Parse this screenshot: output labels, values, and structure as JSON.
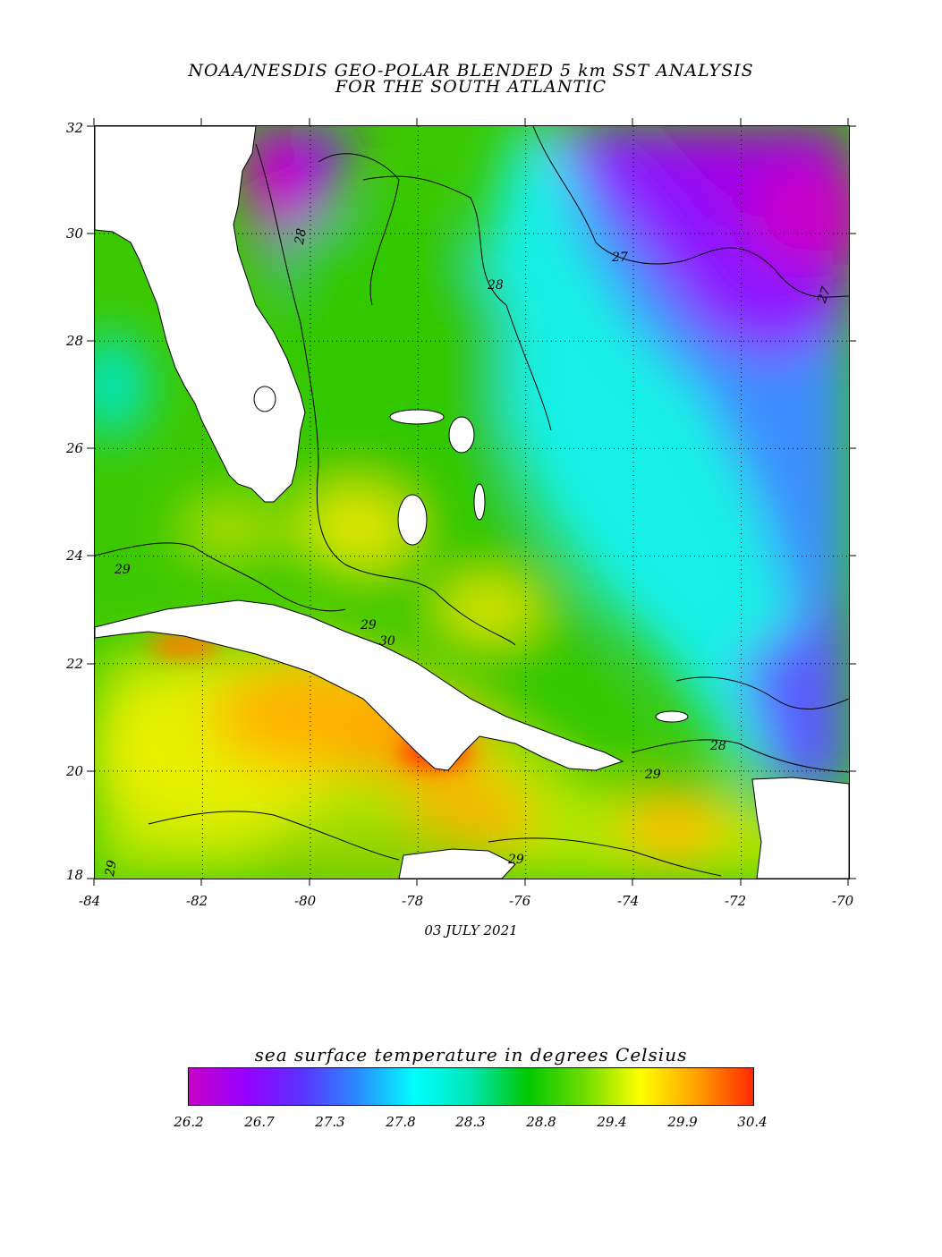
{
  "header": {
    "title_line1": "NOAA/NESDIS GEO-POLAR BLENDED 5 km SST ANALYSIS",
    "title_line2": "FOR THE SOUTH ATLANTIC"
  },
  "map": {
    "date": "03 JULY 2021",
    "lon_labels": [
      "-84",
      "-82",
      "-80",
      "-78",
      "-76",
      "-74",
      "-72",
      "-70"
    ],
    "lat_labels": [
      "32",
      "30",
      "28",
      "26",
      "24",
      "22",
      "20",
      "18"
    ],
    "contour_labels": [
      "28",
      "27",
      "28",
      "27",
      "29",
      "29",
      "30",
      "28",
      "29",
      "29",
      "29"
    ],
    "land_color": "#ffffff",
    "ocean_palette": [
      "#c800c8",
      "#7d00ff",
      "#2a8cff",
      "#00ffff",
      "#00d28c",
      "#32c800",
      "#96dc00",
      "#ffff00",
      "#ffa000",
      "#ff2800"
    ]
  },
  "colorbar": {
    "title": "sea surface temperature in degrees Celsius",
    "labels": [
      "26.2",
      "26.7",
      "27.3",
      "27.8",
      "28.3",
      "28.8",
      "29.4",
      "29.9",
      "30.4"
    ],
    "stops": [
      "#c800c8",
      "#9600ff",
      "#5a32ff",
      "#2a8cff",
      "#00ffff",
      "#00e6b4",
      "#00c800",
      "#6edc00",
      "#ffff00",
      "#ffa000",
      "#ff2800"
    ]
  }
}
